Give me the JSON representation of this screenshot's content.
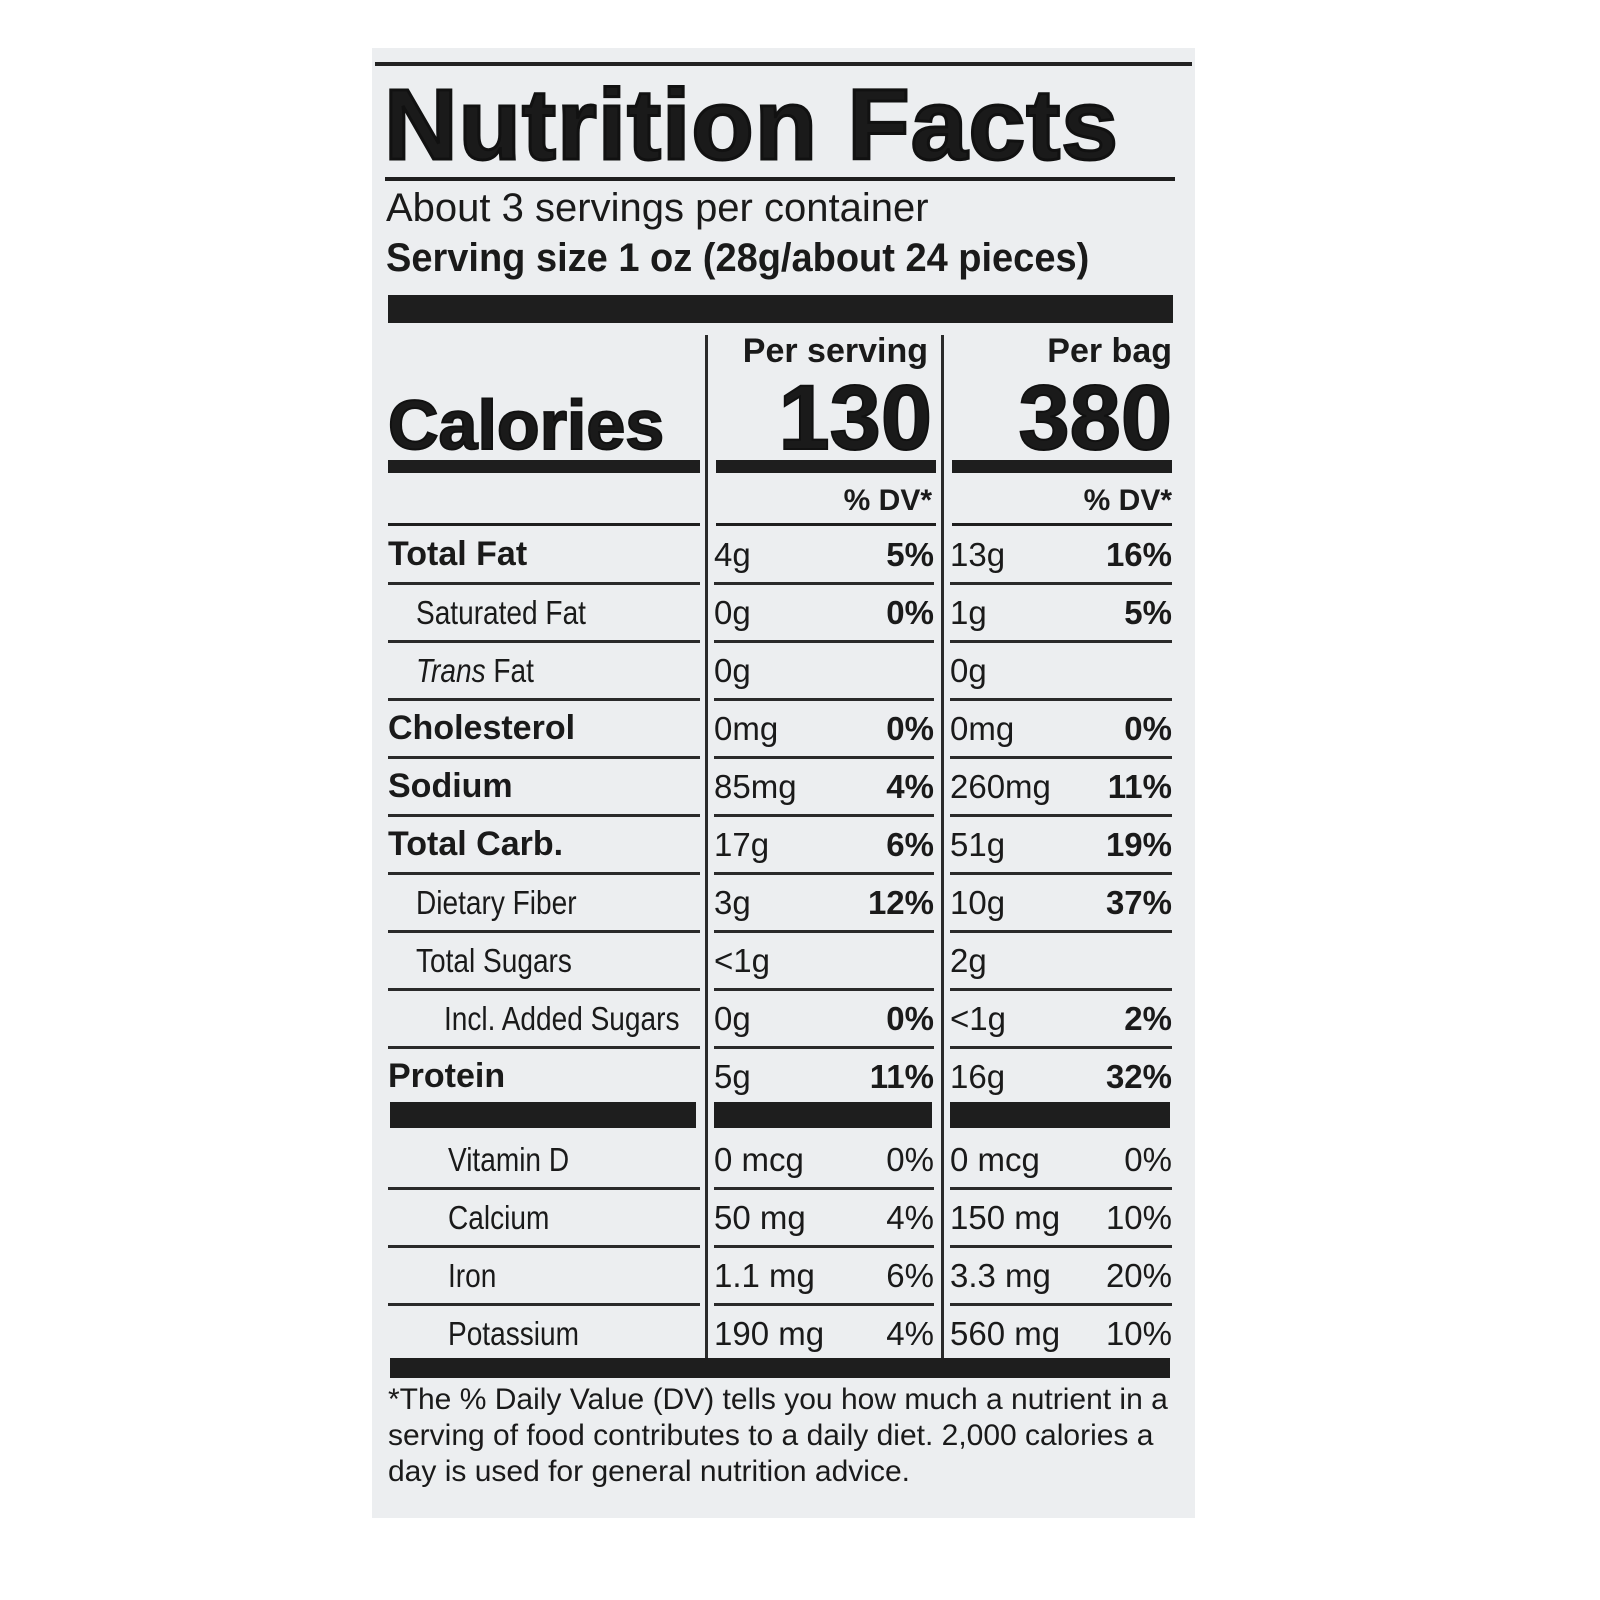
{
  "title": "Nutrition Facts",
  "servings_per_container": "About 3 servings per container",
  "serving_size": "Serving size 1 oz (28g/about 24 pieces)",
  "calories_label": "Calories",
  "per_serving_label": "Per serving",
  "per_bag_label": "Per bag",
  "calories_per_serving": "130",
  "calories_per_bag": "380",
  "dv_label": "% DV*",
  "nutrients": [
    {
      "name": "Total Fat",
      "bold": true,
      "indent": 0,
      "ser_amt": "4g",
      "ser_dv": "5%",
      "bag_amt": "13g",
      "bag_dv": "16%"
    },
    {
      "name": "Saturated Fat",
      "bold": false,
      "indent": 1,
      "ser_amt": "0g",
      "ser_dv": "0%",
      "bag_amt": "1g",
      "bag_dv": "5%"
    },
    {
      "name": "Trans Fat",
      "bold": false,
      "indent": 1,
      "italic_prefix": "Trans",
      "ser_amt": "0g",
      "ser_dv": "",
      "bag_amt": "0g",
      "bag_dv": ""
    },
    {
      "name": "Cholesterol",
      "bold": true,
      "indent": 0,
      "ser_amt": "0mg",
      "ser_dv": "0%",
      "bag_amt": "0mg",
      "bag_dv": "0%"
    },
    {
      "name": "Sodium",
      "bold": true,
      "indent": 0,
      "ser_amt": "85mg",
      "ser_dv": "4%",
      "bag_amt": "260mg",
      "bag_dv": "11%"
    },
    {
      "name": "Total Carb.",
      "bold": true,
      "indent": 0,
      "ser_amt": "17g",
      "ser_dv": "6%",
      "bag_amt": "51g",
      "bag_dv": "19%"
    },
    {
      "name": "Dietary Fiber",
      "bold": false,
      "indent": 1,
      "ser_amt": "3g",
      "ser_dv": "12%",
      "bag_amt": "10g",
      "bag_dv": "37%"
    },
    {
      "name": "Total Sugars",
      "bold": false,
      "indent": 1,
      "ser_amt": "<1g",
      "ser_dv": "",
      "bag_amt": "2g",
      "bag_dv": ""
    },
    {
      "name": "Incl. Added Sugars",
      "bold": false,
      "indent": 2,
      "ser_amt": "0g",
      "ser_dv": "0%",
      "bag_amt": "<1g",
      "bag_dv": "2%"
    },
    {
      "name": "Protein",
      "bold": true,
      "indent": 0,
      "ser_amt": "5g",
      "ser_dv": "11%",
      "bag_amt": "16g",
      "bag_dv": "32%"
    }
  ],
  "vitamins": [
    {
      "name": "Vitamin D",
      "ser_amt": "0 mcg",
      "ser_dv": "0%",
      "bag_amt": "0 mcg",
      "bag_dv": "0%"
    },
    {
      "name": "Calcium",
      "ser_amt": "50 mg",
      "ser_dv": "4%",
      "bag_amt": "150 mg",
      "bag_dv": "10%"
    },
    {
      "name": "Iron",
      "ser_amt": "1.1 mg",
      "ser_dv": "6%",
      "bag_amt": "3.3 mg",
      "bag_dv": "20%"
    },
    {
      "name": "Potassium",
      "ser_amt": "190 mg",
      "ser_dv": "4%",
      "bag_amt": "560 mg",
      "bag_dv": "10%"
    }
  ],
  "footnote": "*The % Daily Value (DV) tells you how much a nutrient in a serving of food contributes to a daily diet. 2,000 calories a day is used for general nutrition advice."
}
